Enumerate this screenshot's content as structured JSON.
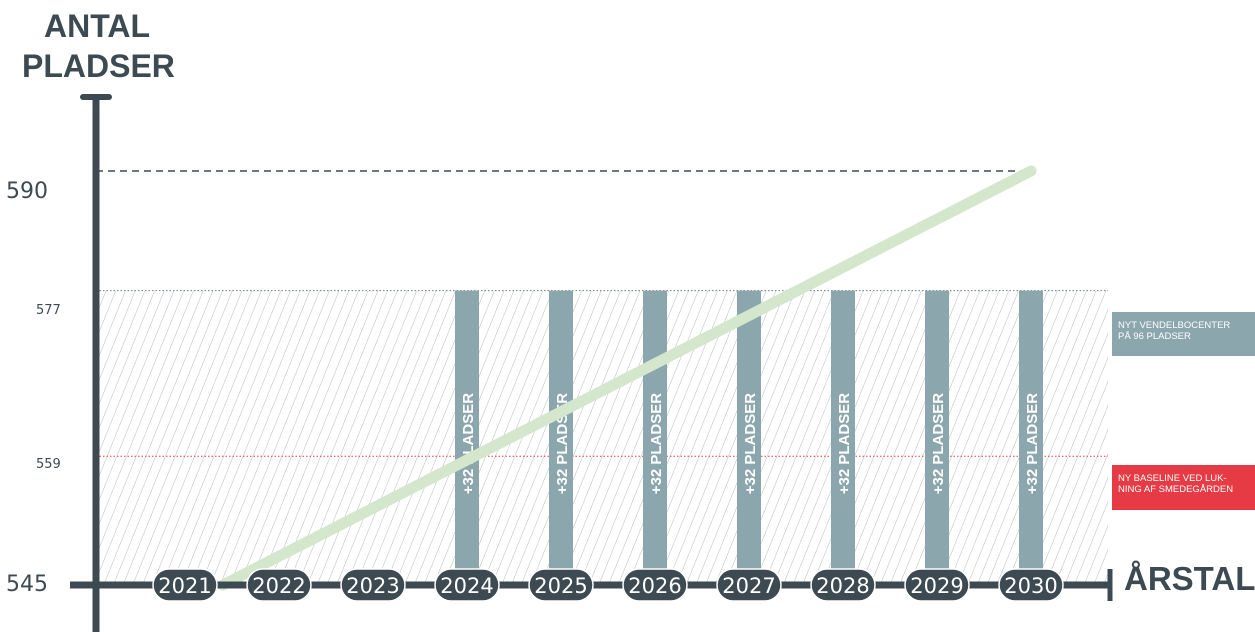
{
  "chart_data": {
    "type": "line",
    "ylabel_lines": [
      "ANTAL",
      "PLADSER"
    ],
    "xlabel": "ÅRSTAL",
    "categories": [
      "2021",
      "2022",
      "2023",
      "2024",
      "2025",
      "2026",
      "2027",
      "2028",
      "2029",
      "2030"
    ],
    "ylim": [
      545,
      596
    ],
    "y_ticks": [
      {
        "value": 590,
        "label": "590"
      },
      {
        "value": 577,
        "label": "577"
      },
      {
        "value": 559,
        "label": "559"
      },
      {
        "value": 545,
        "label": "545"
      }
    ],
    "series": [
      {
        "x": [
          "2021",
          "2030"
        ],
        "values": [
          545,
          590
        ],
        "color": "#d4e6cc"
      }
    ],
    "bars": {
      "years": [
        "2024",
        "2025",
        "2026",
        "2027",
        "2028",
        "2029",
        "2030"
      ],
      "value": 577,
      "label": "+32 PLADSER",
      "color": "#8ba6ad"
    },
    "hatched_band": {
      "from": 545,
      "to": 577
    },
    "reference_lines": [
      {
        "value": 590,
        "style": "dashed",
        "color": "#3d4a52"
      },
      {
        "value": 577,
        "style": "dotted",
        "color": "#6d7a82"
      },
      {
        "value": 559,
        "style": "dotted",
        "color": "#e63a45"
      }
    ],
    "annotations": [
      {
        "lines": [
          "NYT VENDELBOCENTER",
          "PÅ 96 PLADSER"
        ],
        "color": "#8ba6ad",
        "value": 577
      },
      {
        "lines": [
          "NY BASELINE VED LUK-",
          "NING AF SMEDEGÅRDEN"
        ],
        "color": "#e63a45",
        "value": 559
      }
    ],
    "axis_color": "#3d4a52"
  }
}
